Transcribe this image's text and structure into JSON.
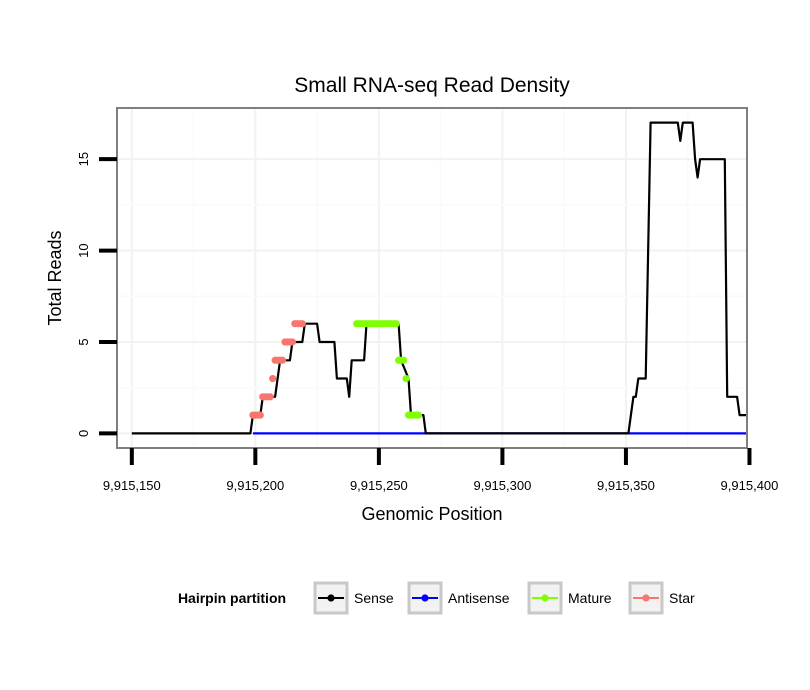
{
  "chart_data": {
    "type": "line",
    "title": "Small RNA-seq Read Density",
    "xlabel": "Genomic Position",
    "ylabel": "Total Reads",
    "xlim": [
      9915144,
      9915399
    ],
    "ylim": [
      -0.8,
      17.8
    ],
    "x_ticks": [
      9915150,
      9915200,
      9915250,
      9915300,
      9915350,
      9915400
    ],
    "x_tick_labels": [
      "9,915,150",
      "9,915,200",
      "9,915,250",
      "9,915,300",
      "9,915,350",
      "9,915,400"
    ],
    "y_ticks": [
      0,
      5,
      10,
      15
    ],
    "y_tick_labels": [
      "0",
      "5",
      "10",
      "15"
    ],
    "grid": true,
    "legend": {
      "title": "Hairpin partition",
      "position": "bottom",
      "entries": [
        {
          "name": "Sense",
          "color": "#000000"
        },
        {
          "name": "Antisense",
          "color": "#0000ff"
        },
        {
          "name": "Mature",
          "color": "#7fff00"
        },
        {
          "name": "Star",
          "color": "#f8766d"
        }
      ]
    },
    "series": [
      {
        "name": "Sense",
        "color": "#000000",
        "points": [
          [
            9915150,
            0
          ],
          [
            9915198,
            0
          ],
          [
            9915199,
            1
          ],
          [
            9915202,
            1
          ],
          [
            9915203,
            2
          ],
          [
            9915208,
            2
          ],
          [
            9915209,
            3
          ],
          [
            9915210,
            4
          ],
          [
            9915214,
            4
          ],
          [
            9915215,
            5
          ],
          [
            9915219,
            5
          ],
          [
            9915220,
            6
          ],
          [
            9915225,
            6
          ],
          [
            9915226,
            5
          ],
          [
            9915232,
            5
          ],
          [
            9915233,
            3
          ],
          [
            9915237,
            3
          ],
          [
            9915238,
            2
          ],
          [
            9915239,
            4
          ],
          [
            9915244,
            4
          ],
          [
            9915245,
            6
          ],
          [
            9915258,
            6
          ],
          [
            9915259,
            4
          ],
          [
            9915262,
            3
          ],
          [
            9915263,
            1
          ],
          [
            9915268,
            1
          ],
          [
            9915269,
            0
          ],
          [
            9915351,
            0
          ],
          [
            9915353,
            2
          ],
          [
            9915354,
            2
          ],
          [
            9915355,
            3
          ],
          [
            9915358,
            3
          ],
          [
            9915360,
            17
          ],
          [
            9915371,
            17
          ],
          [
            9915372,
            16
          ],
          [
            9915373,
            17
          ],
          [
            9915377,
            17
          ],
          [
            9915378,
            15
          ],
          [
            9915379,
            14
          ],
          [
            9915380,
            15
          ],
          [
            9915382,
            15
          ],
          [
            9915383,
            15
          ],
          [
            9915390,
            15
          ],
          [
            9915391,
            2
          ],
          [
            9915395,
            2
          ],
          [
            9915396,
            1
          ],
          [
            9915399,
            1
          ]
        ]
      },
      {
        "name": "Antisense",
        "color": "#0000ff",
        "points": [
          [
            9915199,
            0
          ],
          [
            9915399,
            0
          ]
        ]
      },
      {
        "name": "Mature",
        "color": "#7fff00",
        "points": [
          [
            9915241,
            6
          ],
          [
            9915242,
            6
          ],
          [
            9915243,
            6
          ],
          [
            9915244,
            6
          ],
          [
            9915245,
            6
          ],
          [
            9915246,
            6
          ],
          [
            9915247,
            6
          ],
          [
            9915248,
            6
          ],
          [
            9915249,
            6
          ],
          [
            9915250,
            6
          ],
          [
            9915251,
            6
          ],
          [
            9915252,
            6
          ],
          [
            9915253,
            6
          ],
          [
            9915254,
            6
          ],
          [
            9915255,
            6
          ],
          [
            9915256,
            6
          ],
          [
            9915257,
            6
          ],
          [
            9915258,
            4
          ],
          [
            9915259,
            4
          ],
          [
            9915260,
            4
          ],
          [
            9915261,
            3
          ],
          [
            9915262,
            1
          ],
          [
            9915263,
            1
          ],
          [
            9915264,
            1
          ],
          [
            9915265,
            1
          ],
          [
            9915266,
            1
          ]
        ]
      },
      {
        "name": "Star",
        "color": "#f8766d",
        "points": [
          [
            9915199,
            1
          ],
          [
            9915200,
            1
          ],
          [
            9915201,
            1
          ],
          [
            9915202,
            1
          ],
          [
            9915203,
            2
          ],
          [
            9915204,
            2
          ],
          [
            9915205,
            2
          ],
          [
            9915206,
            2
          ],
          [
            9915207,
            3
          ],
          [
            9915208,
            4
          ],
          [
            9915209,
            4
          ],
          [
            9915210,
            4
          ],
          [
            9915211,
            4
          ],
          [
            9915212,
            5
          ],
          [
            9915213,
            5
          ],
          [
            9915214,
            5
          ],
          [
            9915215,
            5
          ],
          [
            9915216,
            6
          ],
          [
            9915217,
            6
          ],
          [
            9915218,
            6
          ],
          [
            9915219,
            6
          ]
        ]
      }
    ]
  }
}
